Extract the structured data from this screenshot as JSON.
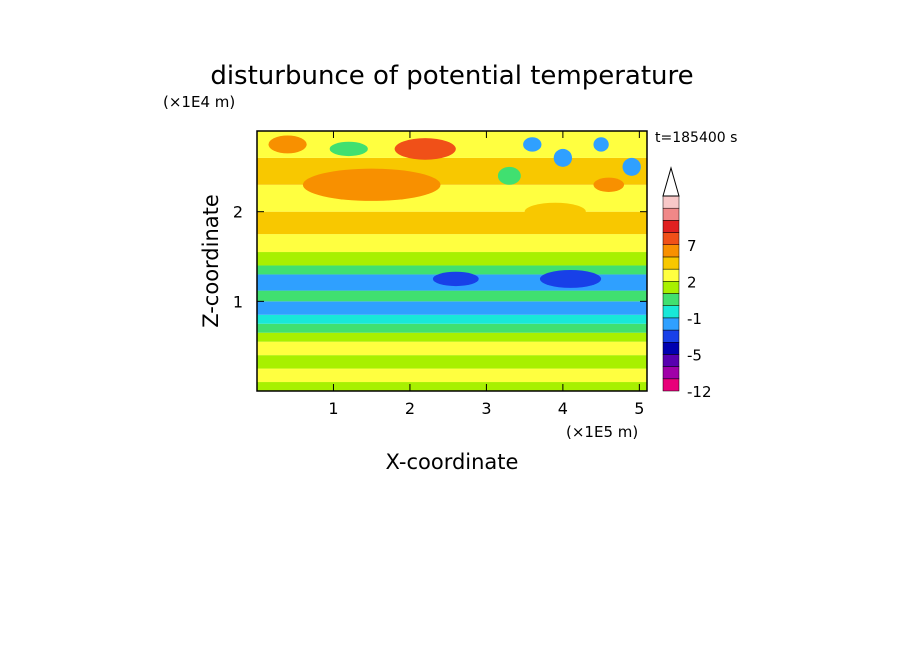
{
  "chart_data": {
    "type": "heatmap",
    "title": "disturbunce of potential temperature",
    "xlabel": "X-coordinate",
    "ylabel": "Z-coordinate",
    "x_unit": "(×1E5 m)",
    "y_unit": "(×1E4 m)",
    "time_label": "t=185400  s",
    "xlim": [
      0,
      5.1
    ],
    "ylim": [
      0,
      2.9
    ],
    "x_ticks": [
      "1",
      "2",
      "3",
      "4",
      "5"
    ],
    "y_ticks": [
      "1",
      "2"
    ],
    "x_tick_values": [
      1,
      2,
      3,
      4,
      5
    ],
    "y_tick_values": [
      1,
      2
    ],
    "colorbar": {
      "levels": [
        -12,
        -10,
        -8,
        -5,
        -4,
        -3,
        -1,
        0,
        1,
        2,
        3,
        5,
        7,
        8,
        9
      ],
      "labeled_ticks": [
        "7",
        "2",
        "-1",
        "-5",
        "-12"
      ],
      "labeled_values": [
        7,
        2,
        -1,
        -5,
        -12
      ],
      "colors": [
        "#e8007a",
        "#a000a8",
        "#5800b0",
        "#0000b0",
        "#1840e8",
        "#2fa0ff",
        "#18e8d8",
        "#40e070",
        "#a8f000",
        "#ffff40",
        "#f8c800",
        "#f89000",
        "#f05018",
        "#e02020",
        "#f08888",
        "#f8c8c8"
      ],
      "extend_top": true
    },
    "bands": [
      {
        "z_min": 0.0,
        "z_max": 0.1,
        "value": 0.5
      },
      {
        "z_min": 0.1,
        "z_max": 0.25,
        "value": 1.5
      },
      {
        "z_min": 0.25,
        "z_max": 0.4,
        "value": 0.5
      },
      {
        "z_min": 0.4,
        "z_max": 0.55,
        "value": 1.5
      },
      {
        "z_min": 0.55,
        "z_max": 0.65,
        "value": 0.5
      },
      {
        "z_min": 0.65,
        "z_max": 0.75,
        "value": -0.5
      },
      {
        "z_min": 0.75,
        "z_max": 0.85,
        "value": -1.5
      },
      {
        "z_min": 0.85,
        "z_max": 1.0,
        "value": -3.5
      },
      {
        "z_min": 1.0,
        "z_max": 1.12,
        "value": -0.5
      },
      {
        "z_min": 1.12,
        "z_max": 1.3,
        "value": -3.5
      },
      {
        "z_min": 1.3,
        "z_max": 1.4,
        "value": -0.5
      },
      {
        "z_min": 1.4,
        "z_max": 1.55,
        "value": 0.5
      },
      {
        "z_min": 1.55,
        "z_max": 1.75,
        "value": 1.5
      },
      {
        "z_min": 1.75,
        "z_max": 2.0,
        "value": 2.5
      },
      {
        "z_min": 2.0,
        "z_max": 2.3,
        "value": 1.5
      },
      {
        "z_min": 2.3,
        "z_max": 2.6,
        "value": 2.5
      },
      {
        "z_min": 2.6,
        "z_max": 2.9,
        "value": 1.5
      }
    ],
    "blobs": [
      {
        "x": 1.5,
        "z": 2.3,
        "rx": 0.9,
        "rz": 0.18,
        "value": 4
      },
      {
        "x": 2.2,
        "z": 2.7,
        "rx": 0.4,
        "rz": 0.12,
        "value": 5.5
      },
      {
        "x": 0.4,
        "z": 2.75,
        "rx": 0.25,
        "rz": 0.1,
        "value": 4
      },
      {
        "x": 1.2,
        "z": 2.7,
        "rx": 0.25,
        "rz": 0.08,
        "value": -0.5
      },
      {
        "x": 3.6,
        "z": 2.75,
        "rx": 0.12,
        "rz": 0.08,
        "value": -3.5
      },
      {
        "x": 4.0,
        "z": 2.6,
        "rx": 0.12,
        "rz": 0.1,
        "value": -3.5
      },
      {
        "x": 4.5,
        "z": 2.75,
        "rx": 0.1,
        "rz": 0.08,
        "value": -3.5
      },
      {
        "x": 4.9,
        "z": 2.5,
        "rx": 0.12,
        "rz": 0.1,
        "value": -3.5
      },
      {
        "x": 3.3,
        "z": 2.4,
        "rx": 0.15,
        "rz": 0.1,
        "value": -0.5
      },
      {
        "x": 4.6,
        "z": 2.3,
        "rx": 0.2,
        "rz": 0.08,
        "value": 4
      },
      {
        "x": 3.9,
        "z": 2.0,
        "rx": 0.4,
        "rz": 0.1,
        "value": 2.5
      },
      {
        "x": 4.1,
        "z": 1.25,
        "rx": 0.4,
        "rz": 0.1,
        "value": -5
      },
      {
        "x": 2.6,
        "z": 1.25,
        "rx": 0.3,
        "rz": 0.08,
        "value": -5
      }
    ]
  }
}
